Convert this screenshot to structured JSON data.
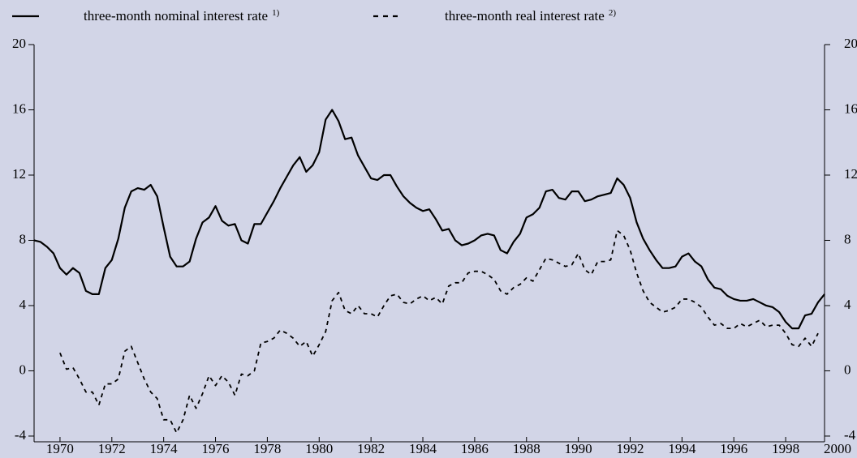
{
  "chart_data": {
    "type": "line",
    "x": [
      1969,
      1969.25,
      1969.5,
      1969.75,
      1970,
      1970.25,
      1970.5,
      1970.75,
      1971,
      1971.25,
      1971.5,
      1971.75,
      1972,
      1972.25,
      1972.5,
      1972.75,
      1973,
      1973.25,
      1973.5,
      1973.75,
      1974,
      1974.25,
      1974.5,
      1974.75,
      1975,
      1975.25,
      1975.5,
      1975.75,
      1976,
      1976.25,
      1976.5,
      1976.75,
      1977,
      1977.25,
      1977.5,
      1977.75,
      1978,
      1978.25,
      1978.5,
      1978.75,
      1979,
      1979.25,
      1979.5,
      1979.75,
      1980,
      1980.25,
      1980.5,
      1980.75,
      1981,
      1981.25,
      1981.5,
      1981.75,
      1982,
      1982.25,
      1982.5,
      1982.75,
      1983,
      1983.25,
      1983.5,
      1983.75,
      1984,
      1984.25,
      1984.5,
      1984.75,
      1985,
      1985.25,
      1985.5,
      1985.75,
      1986,
      1986.25,
      1986.5,
      1986.75,
      1987,
      1987.25,
      1987.5,
      1987.75,
      1988,
      1988.25,
      1988.5,
      1988.75,
      1989,
      1989.25,
      1989.5,
      1989.75,
      1990,
      1990.25,
      1990.5,
      1990.75,
      1991,
      1991.25,
      1991.5,
      1991.75,
      1992,
      1992.25,
      1992.5,
      1992.75,
      1993,
      1993.25,
      1993.5,
      1993.75,
      1994,
      1994.25,
      1994.5,
      1994.75,
      1995,
      1995.25,
      1995.5,
      1995.75,
      1996,
      1996.25,
      1996.5,
      1996.75,
      1997,
      1997.25,
      1997.5,
      1997.75,
      1998,
      1998.25,
      1998.5,
      1998.75,
      1999,
      1999.25,
      1999.5
    ],
    "series": [
      {
        "name": "three-month nominal interest rate",
        "note": "1)",
        "color": "#000000",
        "style": "solid",
        "values": [
          8.0,
          7.9,
          7.6,
          7.2,
          6.3,
          5.9,
          6.3,
          6.0,
          4.9,
          4.7,
          4.7,
          6.3,
          6.8,
          8.1,
          10.0,
          11.0,
          11.2,
          11.1,
          11.4,
          10.7,
          8.8,
          7.0,
          6.4,
          6.4,
          6.7,
          8.1,
          9.1,
          9.4,
          10.1,
          9.2,
          8.9,
          9.0,
          8.0,
          7.8,
          9.0,
          9.0,
          9.7,
          10.4,
          11.2,
          11.9,
          12.6,
          13.1,
          12.2,
          12.6,
          13.4,
          15.4,
          16.0,
          15.3,
          14.2,
          14.3,
          13.2,
          12.5,
          11.8,
          11.7,
          12.0,
          12.0,
          11.3,
          10.7,
          10.3,
          10.0,
          9.8,
          9.9,
          9.3,
          8.6,
          8.7,
          8.0,
          7.7,
          7.8,
          8.0,
          8.3,
          8.4,
          8.3,
          7.4,
          7.2,
          7.9,
          8.4,
          9.4,
          9.6,
          10.0,
          11.0,
          11.1,
          10.6,
          10.5,
          11.0,
          11.0,
          10.4,
          10.5,
          10.7,
          10.8,
          10.9,
          11.8,
          11.4,
          10.6,
          9.1,
          8.1,
          7.4,
          6.8,
          6.3,
          6.3,
          6.4,
          7.0,
          7.2,
          6.7,
          6.4,
          5.6,
          5.1,
          5.0,
          4.6,
          4.4,
          4.3,
          4.3,
          4.4,
          4.2,
          4.0,
          3.9,
          3.6,
          3.0,
          2.6,
          2.6,
          3.4,
          3.5,
          4.2,
          4.7
        ]
      },
      {
        "name": "three-month real interest rate",
        "note": "2)",
        "color": "#000000",
        "style": "dashed",
        "values": [
          null,
          null,
          null,
          null,
          1.1,
          0.1,
          0.2,
          -0.5,
          -1.3,
          -1.3,
          -2.1,
          -0.8,
          -0.8,
          -0.5,
          1.2,
          1.5,
          0.5,
          -0.5,
          -1.3,
          -1.7,
          -3.0,
          -3.0,
          -3.8,
          -3.0,
          -1.5,
          -2.3,
          -1.4,
          -0.3,
          -0.9,
          -0.3,
          -0.7,
          -1.5,
          -0.2,
          -0.3,
          0.0,
          1.7,
          1.8,
          2.0,
          2.5,
          2.3,
          2.0,
          1.5,
          1.8,
          0.9,
          1.6,
          2.4,
          4.3,
          4.8,
          3.7,
          3.5,
          4.0,
          3.5,
          3.5,
          3.3,
          4.0,
          4.6,
          4.7,
          4.2,
          4.1,
          4.4,
          4.6,
          4.3,
          4.5,
          4.1,
          5.2,
          5.4,
          5.4,
          6.0,
          6.1,
          6.1,
          5.9,
          5.6,
          4.9,
          4.7,
          5.1,
          5.3,
          5.7,
          5.5,
          6.2,
          6.9,
          6.8,
          6.6,
          6.4,
          6.5,
          7.2,
          6.2,
          5.9,
          6.7,
          6.7,
          6.8,
          8.6,
          8.3,
          7.4,
          6.0,
          4.9,
          4.2,
          3.9,
          3.6,
          3.7,
          3.9,
          4.4,
          4.4,
          4.2,
          3.9,
          3.3,
          2.8,
          2.9,
          2.6,
          2.6,
          2.9,
          2.7,
          2.9,
          3.1,
          2.7,
          2.8,
          2.8,
          2.3,
          1.6,
          1.5,
          2.0,
          1.5,
          2.3,
          null
        ]
      }
    ],
    "xlim": [
      1969,
      1999.5
    ],
    "xticks": [
      1970,
      1972,
      1974,
      1976,
      1978,
      1980,
      1982,
      1984,
      1986,
      1988,
      1990,
      1992,
      1994,
      1996,
      1998,
      2000
    ],
    "ylim": [
      -4.35,
      20
    ],
    "yticks": [
      -4,
      0,
      4,
      8,
      12,
      16,
      20
    ],
    "right_axis": true
  }
}
